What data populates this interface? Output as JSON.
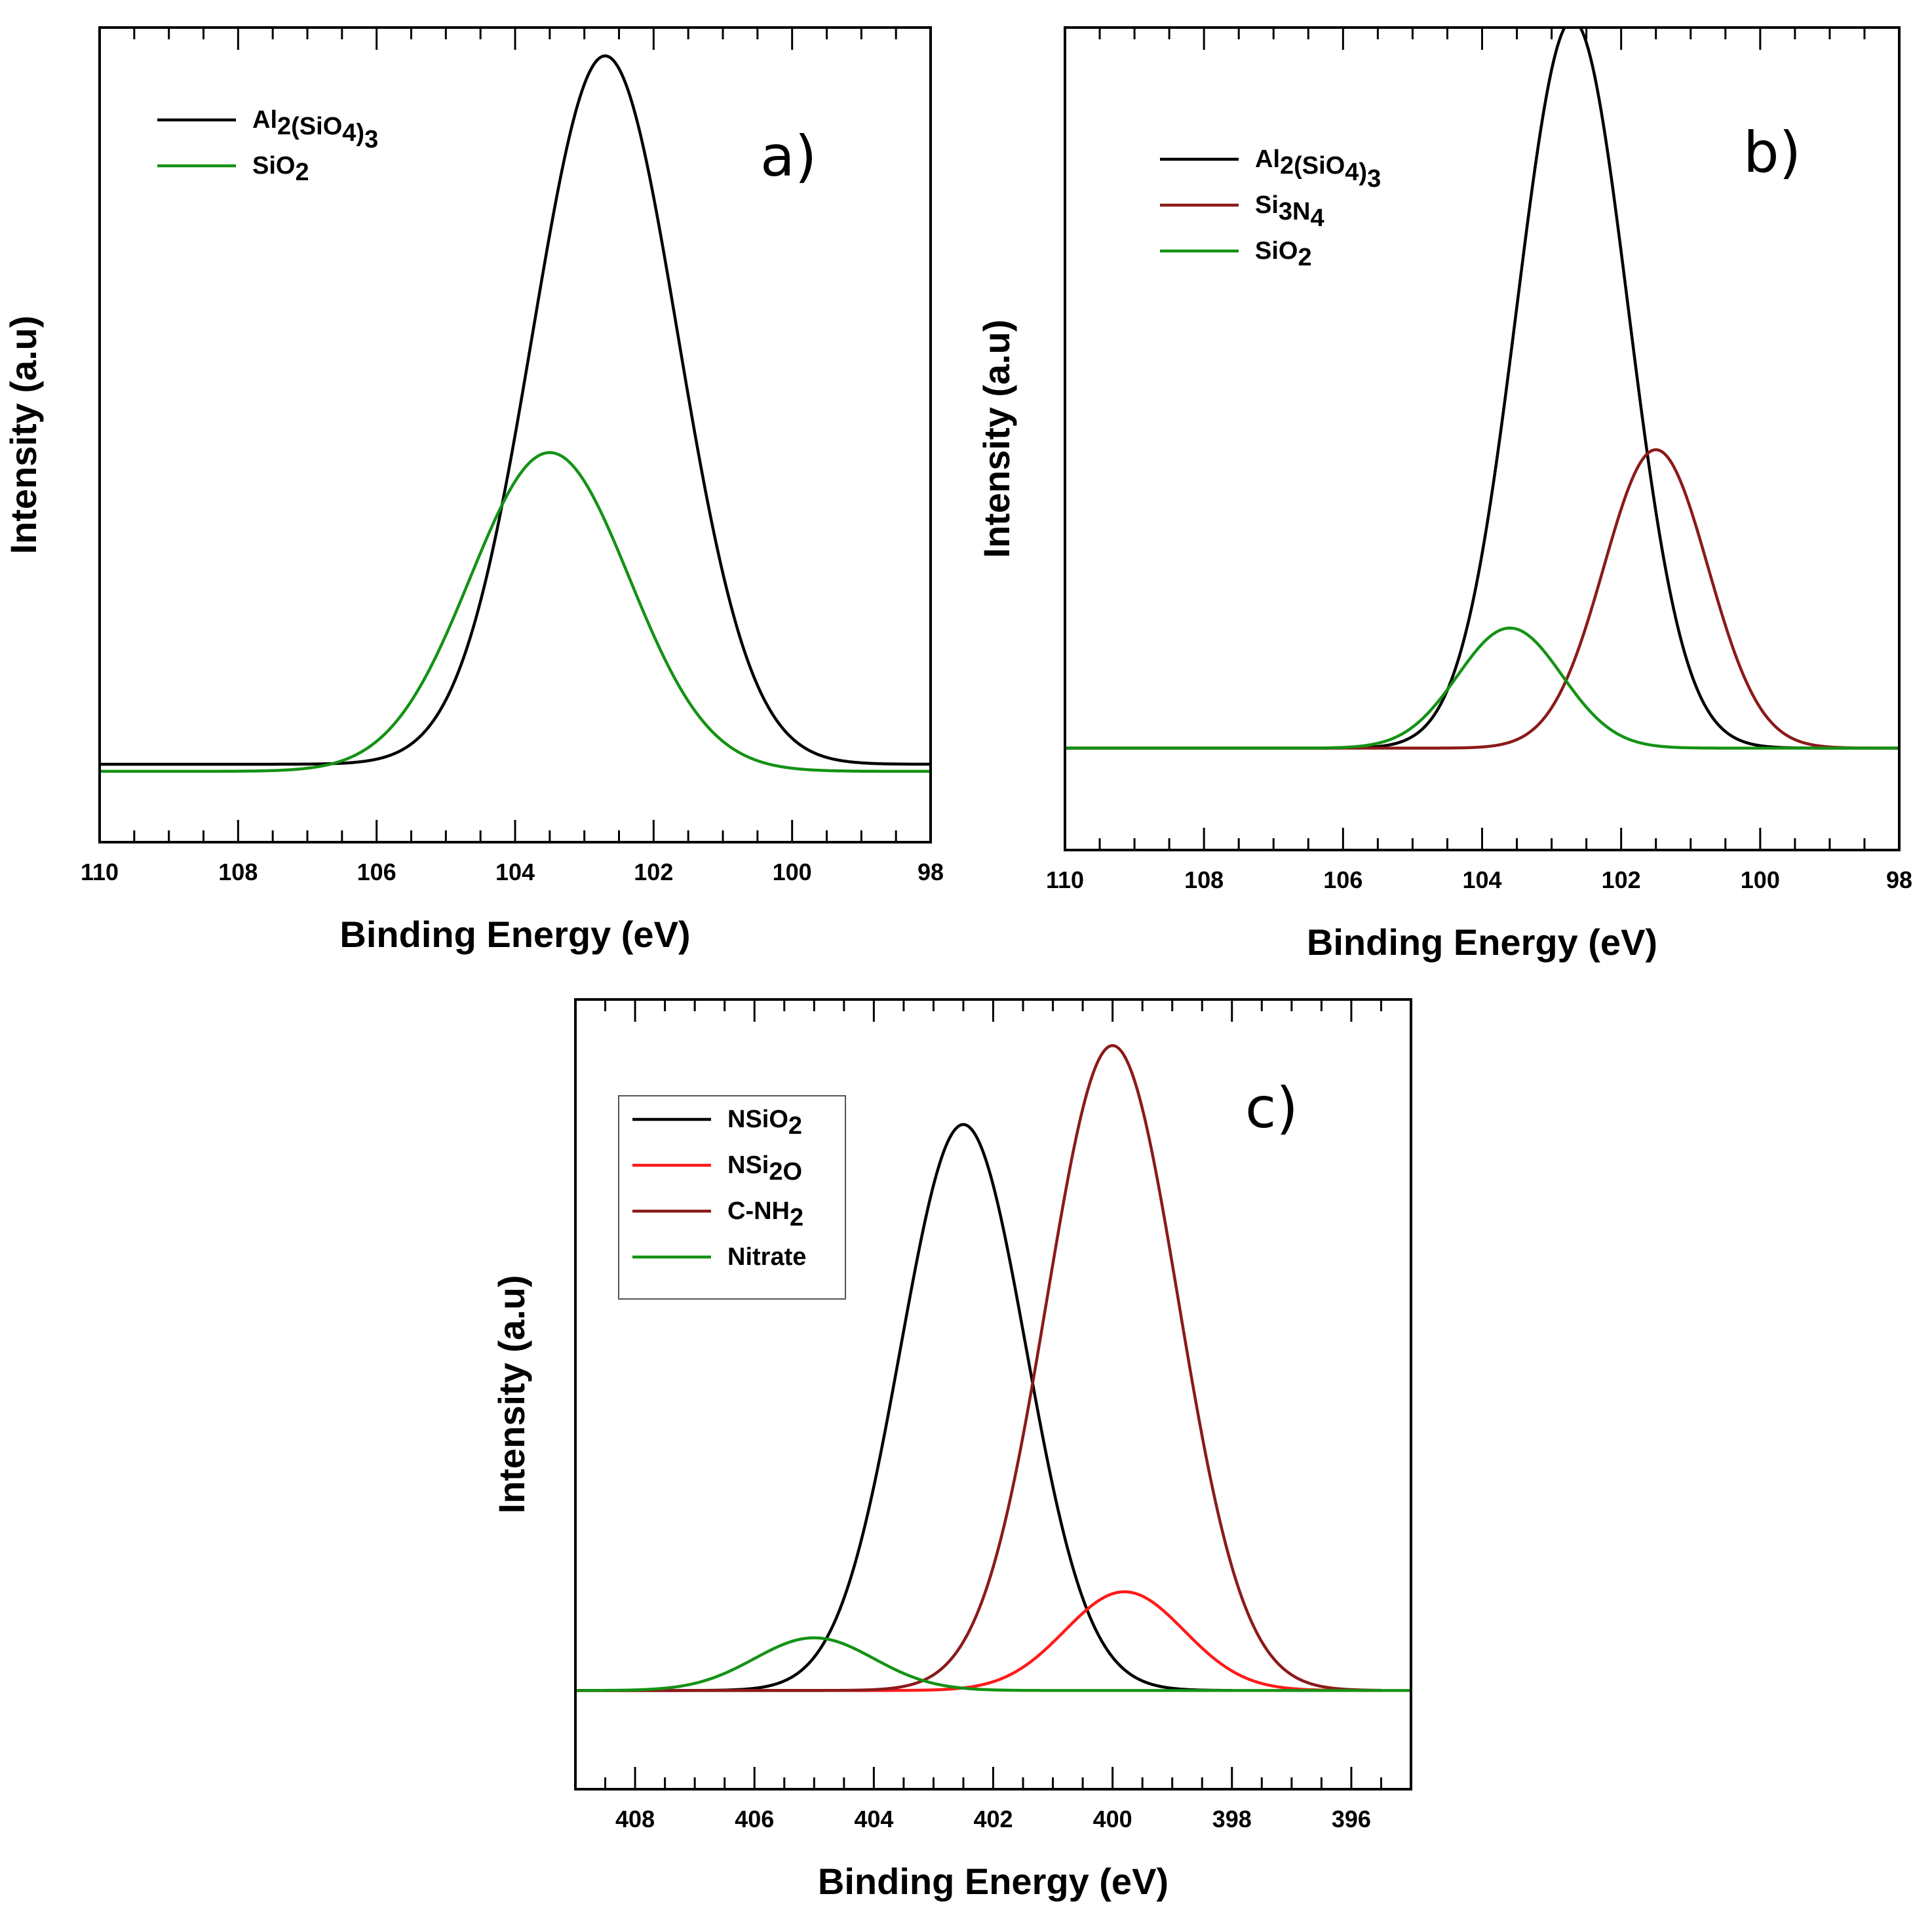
{
  "chart_data": [
    {
      "panel": "a)",
      "type": "line",
      "xlabel": "Binding Energy (eV)",
      "ylabel": "Intensity (a.u)",
      "xlim": [
        110,
        98
      ],
      "x_reversed": true,
      "xticks": [
        110,
        108,
        106,
        104,
        102,
        100,
        98
      ],
      "legend": {
        "placement": "top-left",
        "boxed": false
      },
      "series": [
        {
          "name": "Al2(SiO4)3",
          "name_parts": [
            [
              "Al",
              false
            ],
            [
              "2",
              true
            ],
            [
              "(SiO",
              false
            ],
            [
              "4",
              true
            ],
            [
              ")",
              false
            ],
            [
              "3",
              true
            ]
          ],
          "color": "#000000",
          "center": 102.7,
          "sigma": 1.05,
          "amplitude": 1.0,
          "baseline": 0.01,
          "x_range": [
            110,
            98
          ]
        },
        {
          "name": "SiO2",
          "name_parts": [
            [
              "SiO",
              false
            ],
            [
              "2",
              true
            ]
          ],
          "color": "#149214",
          "center": 103.5,
          "sigma": 1.15,
          "amplitude": 0.45,
          "baseline": 0.0,
          "x_range": [
            110,
            98
          ]
        }
      ]
    },
    {
      "panel": "b)",
      "type": "line",
      "xlabel": "Binding Energy (eV)",
      "ylabel": "Intensity (a.u)",
      "xlim": [
        110,
        98
      ],
      "x_reversed": true,
      "xticks": [
        110,
        108,
        106,
        104,
        102,
        100,
        98
      ],
      "legend": {
        "placement": "top-left",
        "boxed": false
      },
      "series": [
        {
          "name": "Al2(SiO4)3",
          "name_parts": [
            [
              "Al",
              false
            ],
            [
              "2",
              true
            ],
            [
              "(SiO",
              false
            ],
            [
              "4",
              true
            ],
            [
              ")",
              false
            ],
            [
              "3",
              true
            ]
          ],
          "color": "#000000",
          "center": 102.7,
          "sigma": 0.8,
          "amplitude": 1.0,
          "baseline": 0.0,
          "x_range": [
            110,
            98
          ]
        },
        {
          "name": "Si3N4",
          "name_parts": [
            [
              "Si",
              false
            ],
            [
              "3",
              true
            ],
            [
              "N",
              false
            ],
            [
              "4",
              true
            ]
          ],
          "color": "#8b1a1a",
          "center": 101.5,
          "sigma": 0.75,
          "amplitude": 0.41,
          "baseline": 0.0,
          "x_range": [
            110,
            98
          ]
        },
        {
          "name": "SiO2",
          "name_parts": [
            [
              "SiO",
              false
            ],
            [
              "2",
              true
            ]
          ],
          "color": "#149214",
          "center": 103.6,
          "sigma": 0.75,
          "amplitude": 0.165,
          "baseline": 0.0,
          "x_range": [
            110,
            98
          ]
        }
      ]
    },
    {
      "panel": "c)",
      "type": "line",
      "xlabel": "Binding Energy (eV)",
      "ylabel": "Intensity (a.u)",
      "xlim": [
        409,
        395
      ],
      "x_reversed": true,
      "xticks": [
        408,
        406,
        404,
        402,
        400,
        398,
        396
      ],
      "legend": {
        "placement": "top-left",
        "boxed": true
      },
      "series": [
        {
          "name": "NSiO2",
          "name_parts": [
            [
              "NSiO",
              false
            ],
            [
              "2",
              true
            ]
          ],
          "color": "#000000",
          "center": 402.5,
          "sigma": 1.05,
          "amplitude": 0.86,
          "baseline": 0.0,
          "x_range": [
            409,
            398
          ]
        },
        {
          "name": "NSi2O",
          "name_parts": [
            [
              "NSi",
              false
            ],
            [
              "2",
              true
            ],
            [
              "O",
              false
            ]
          ],
          "color": "#ff1a1a",
          "center": 399.8,
          "sigma": 1.0,
          "amplitude": 0.15,
          "baseline": 0.0,
          "x_range": [
            409,
            395.5
          ]
        },
        {
          "name": "C-NH2",
          "name_parts": [
            [
              "C-NH",
              false
            ],
            [
              "2",
              true
            ]
          ],
          "color": "#8b1a1a",
          "center": 400.0,
          "sigma": 1.1,
          "amplitude": 0.98,
          "baseline": 0.0,
          "x_range": [
            409,
            395.5
          ]
        },
        {
          "name": "Nitrate",
          "name_parts": [
            [
              "Nitrate",
              false
            ]
          ],
          "color": "#149214",
          "center": 405.0,
          "sigma": 1.0,
          "amplitude": 0.08,
          "baseline": 0.0,
          "x_range": [
            409,
            395
          ]
        }
      ]
    }
  ]
}
